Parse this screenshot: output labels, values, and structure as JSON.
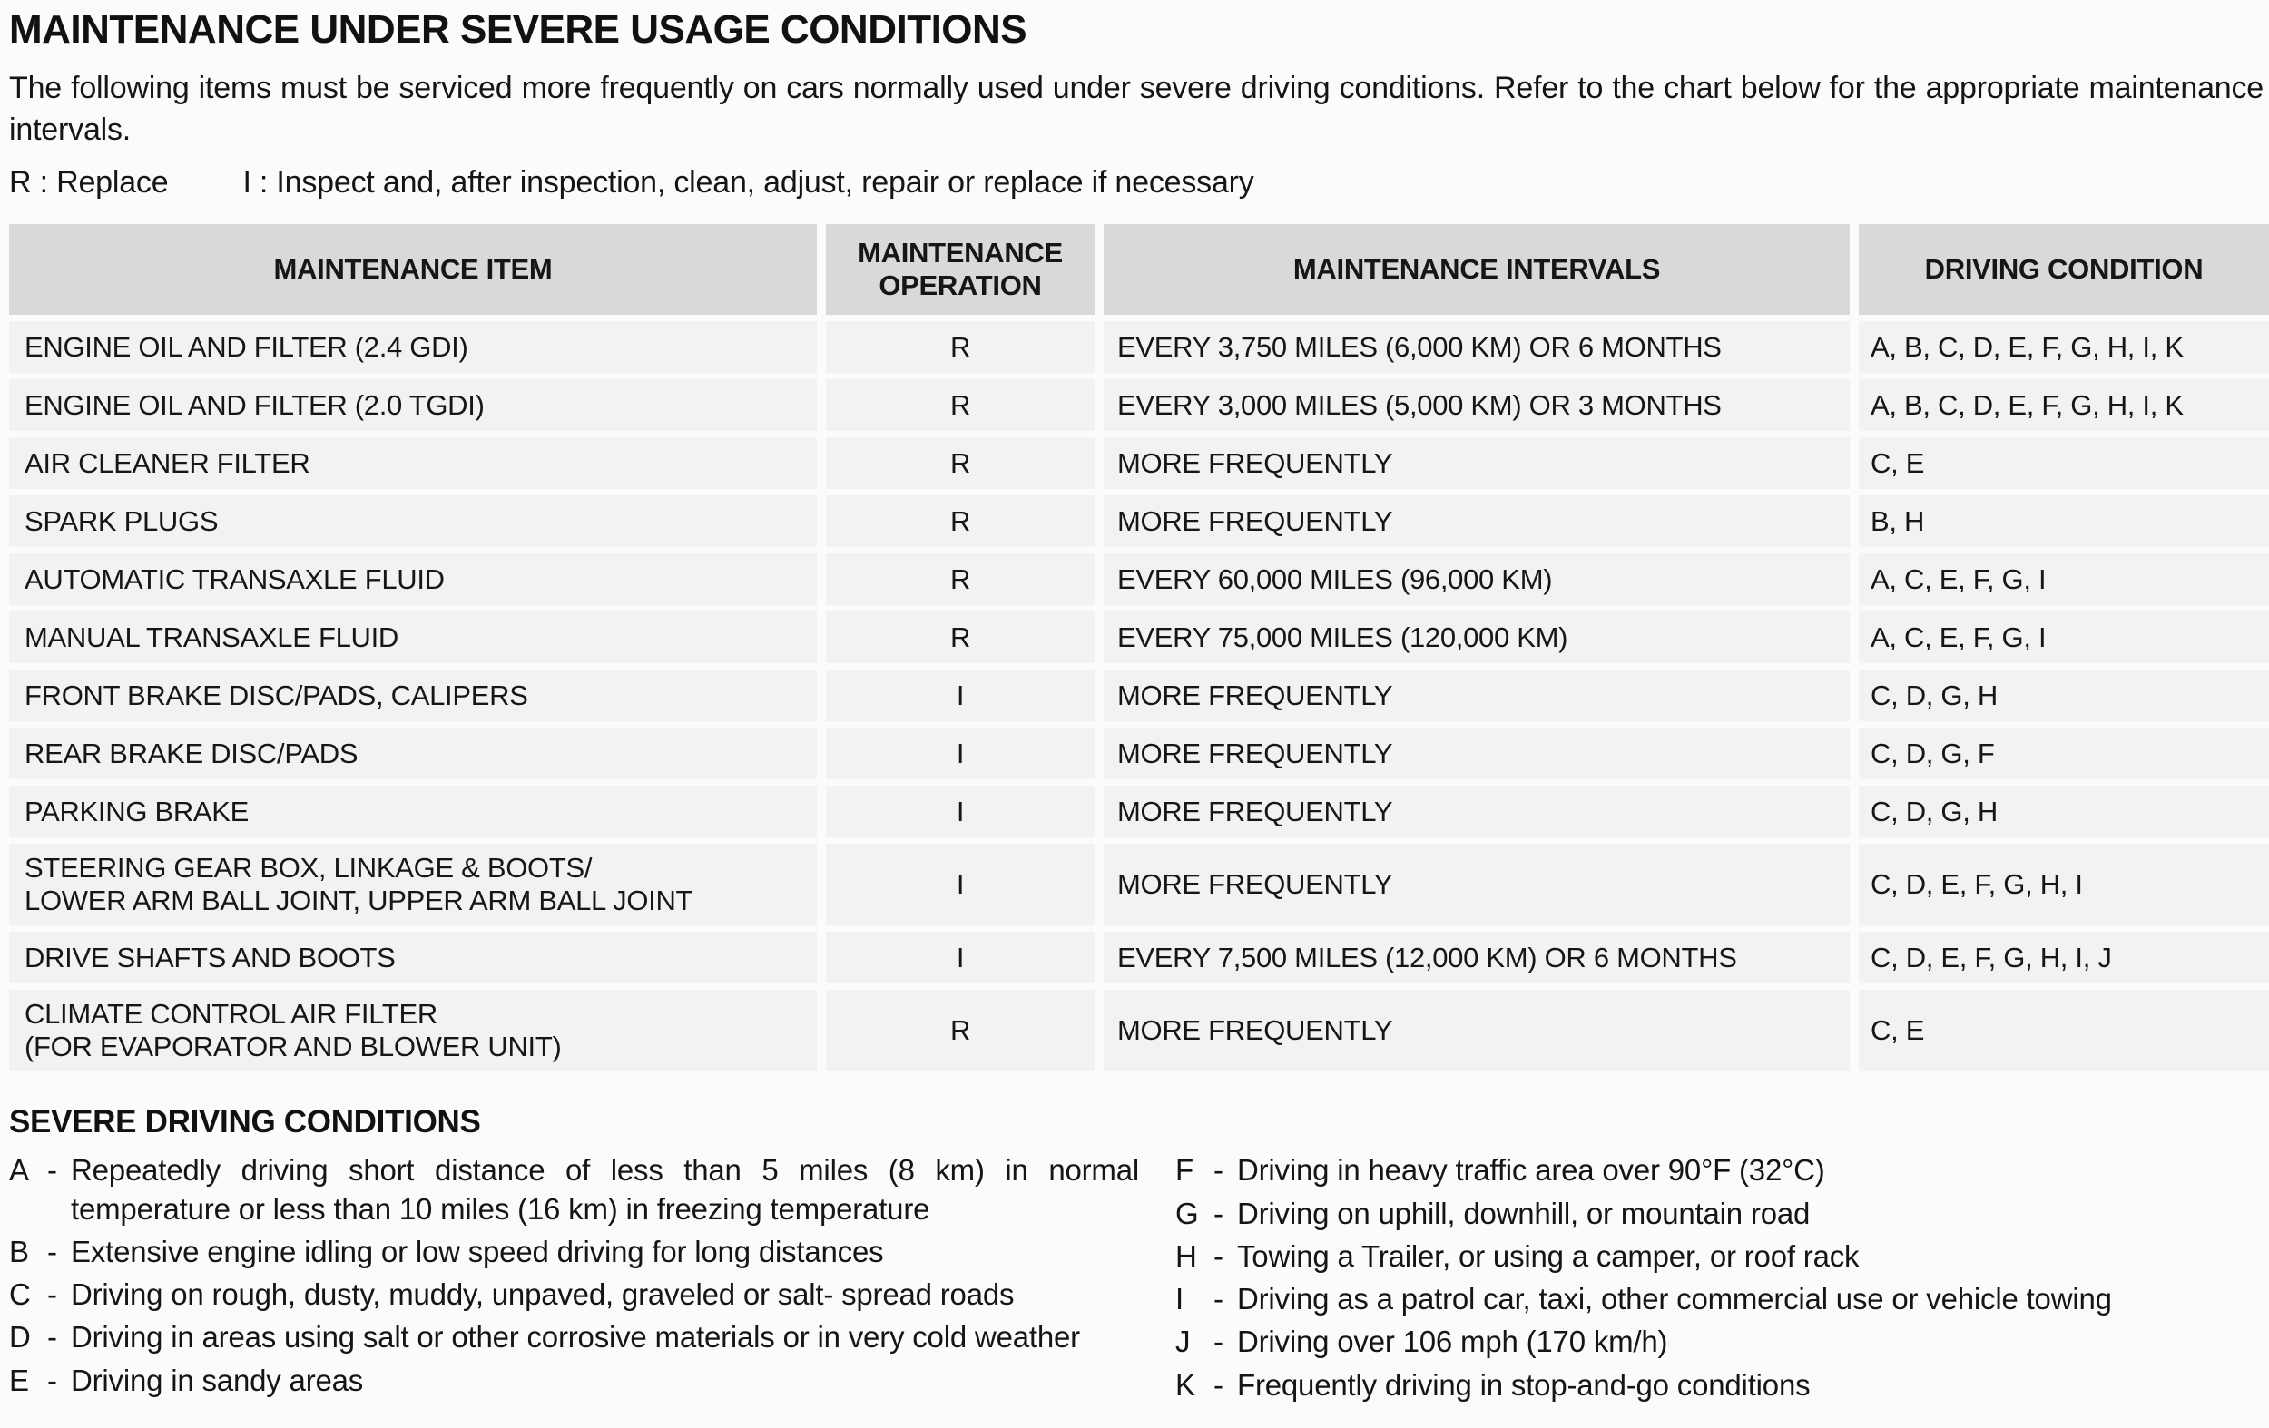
{
  "page": {
    "title": "MAINTENANCE UNDER SEVERE USAGE CONDITIONS",
    "intro": "The following items must be serviced more frequently on cars normally used under severe driving conditions. Refer to the chart below for the appropriate maintenance intervals.",
    "legend": {
      "replace": "R : Replace",
      "inspect": "I : Inspect and, after inspection, clean, adjust, repair or replace if necessary"
    }
  },
  "colors": {
    "header_bg": "#d8d9da",
    "row_bg": "#f1f2f2",
    "text": "#151515"
  },
  "table": {
    "headers": [
      "MAINTENANCE ITEM",
      "MAINTENANCE OPERATION",
      "MAINTENANCE INTERVALS",
      "DRIVING CONDITION"
    ],
    "rows": [
      {
        "item": "ENGINE OIL AND FILTER (2.4 GDI)",
        "operation": "R",
        "interval": "EVERY 3,750 MILES (6,000 KM) OR 6 MONTHS",
        "condition": "A, B, C, D, E, F, G, H, I, K"
      },
      {
        "item": "ENGINE OIL AND FILTER (2.0 TGDI)",
        "operation": "R",
        "interval": "EVERY 3,000 MILES (5,000 KM) OR 3 MONTHS",
        "condition": "A, B, C, D, E, F, G, H, I, K"
      },
      {
        "item": "AIR CLEANER FILTER",
        "operation": "R",
        "interval": "MORE FREQUENTLY",
        "condition": "C, E"
      },
      {
        "item": "SPARK PLUGS",
        "operation": "R",
        "interval": "MORE FREQUENTLY",
        "condition": "B, H"
      },
      {
        "item": "AUTOMATIC TRANSAXLE FLUID",
        "operation": "R",
        "interval": "EVERY 60,000 MILES (96,000 KM)",
        "condition": "A, C, E, F, G, I"
      },
      {
        "item": "MANUAL TRANSAXLE FLUID",
        "operation": "R",
        "interval": "EVERY 75,000 MILES (120,000 KM)",
        "condition": "A, C, E, F, G, I"
      },
      {
        "item": "FRONT BRAKE DISC/PADS, CALIPERS",
        "operation": "I",
        "interval": "MORE FREQUENTLY",
        "condition": "C, D, G, H"
      },
      {
        "item": "REAR BRAKE DISC/PADS",
        "operation": "I",
        "interval": "MORE FREQUENTLY",
        "condition": "C, D, G, F"
      },
      {
        "item": "PARKING BRAKE",
        "operation": "I",
        "interval": "MORE FREQUENTLY",
        "condition": "C, D, G, H"
      },
      {
        "item": "STEERING GEAR BOX, LINKAGE & BOOTS/\nLOWER ARM BALL JOINT, UPPER ARM BALL JOINT",
        "operation": "I",
        "interval": "MORE FREQUENTLY",
        "condition": "C, D, E, F, G, H, I"
      },
      {
        "item": "DRIVE SHAFTS AND BOOTS",
        "operation": "I",
        "interval": "EVERY 7,500 MILES (12,000 KM) OR 6 MONTHS",
        "condition": "C, D, E, F, G, H, I, J"
      },
      {
        "item": "CLIMATE CONTROL AIR FILTER\n(FOR EVAPORATOR AND BLOWER UNIT)",
        "operation": "R",
        "interval": "MORE FREQUENTLY",
        "condition": "C, E"
      }
    ]
  },
  "conditions": {
    "heading": "SEVERE DRIVING CONDITIONS",
    "dash": "-",
    "left": [
      {
        "key": "A",
        "text": "Repeatedly driving short distance of less than 5 miles (8 km) in normal temperature or less than 10 miles (16 km) in freezing temperature"
      },
      {
        "key": "B",
        "text": "Extensive engine idling or low speed driving for long distances"
      },
      {
        "key": "C",
        "text": "Driving on rough, dusty, muddy, unpaved, graveled or salt- spread roads"
      },
      {
        "key": "D",
        "text": "Driving in areas using salt or other corrosive materials or in very cold weather"
      },
      {
        "key": "E",
        "text": "Driving in sandy areas"
      }
    ],
    "right": [
      {
        "key": "F",
        "text": "Driving in heavy traffic area over 90°F (32°C)"
      },
      {
        "key": "G",
        "text": "Driving on uphill, downhill, or mountain road"
      },
      {
        "key": "H",
        "text": "Towing a Trailer, or using a camper, or roof rack"
      },
      {
        "key": "I",
        "text": "Driving as a patrol car, taxi, other commercial use or vehicle towing"
      },
      {
        "key": "J",
        "text": "Driving over 106 mph (170 km/h)"
      },
      {
        "key": "K",
        "text": "Frequently driving in stop-and-go conditions"
      }
    ]
  }
}
